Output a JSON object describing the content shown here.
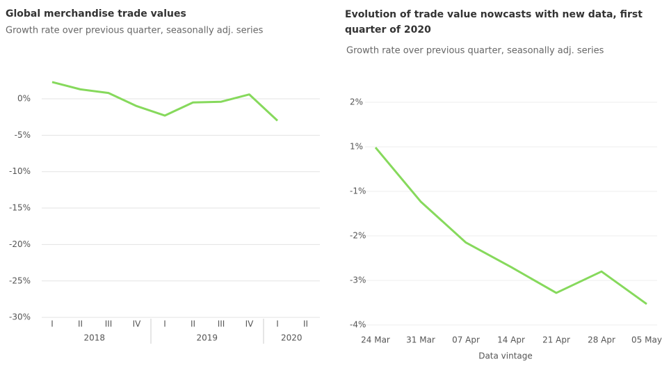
{
  "chart_data": [
    {
      "type": "line",
      "title": "Global merchandise trade values",
      "subtitle": "Growth rate over previous quarter, seasonally adj. series",
      "groups": [
        {
          "label": "2018",
          "categories": [
            "I",
            "II",
            "III",
            "IV"
          ]
        },
        {
          "label": "2019",
          "categories": [
            "I",
            "II",
            "III",
            "IV"
          ]
        },
        {
          "label": "2020",
          "categories": [
            "I",
            "II"
          ]
        }
      ],
      "series": [
        {
          "color": "#86d95c",
          "values": [
            2.3,
            1.3,
            0.8,
            -1.0,
            -2.3,
            -0.5,
            -0.4,
            0.6,
            -3.0,
            null
          ]
        }
      ],
      "ylim": [
        2.8,
        -30.5
      ],
      "yticks": [
        {
          "value": 0,
          "label": "0%"
        },
        {
          "value": -5,
          "label": "-5%"
        },
        {
          "value": -10,
          "label": "-10%"
        },
        {
          "value": -15,
          "label": "-15%"
        },
        {
          "value": -20,
          "label": "-20%"
        },
        {
          "value": -25,
          "label": "-25%"
        },
        {
          "value": -30,
          "label": "-30%"
        }
      ],
      "grid": true
    },
    {
      "type": "line",
      "title": "Evolution of trade value nowcasts with new data, first quarter of 2020",
      "subtitle": "Growth rate over previous quarter, seasonally adj. series",
      "xlabel": "Data vintage",
      "categories": [
        "24 Mar",
        "31 Mar",
        "07 Apr",
        "14 Apr",
        "21 Apr",
        "28 Apr",
        "05 May"
      ],
      "series": [
        {
          "color": "#86d95c",
          "values": [
            0.97,
            -1.23,
            -2.15,
            -2.7,
            -3.28,
            -2.8,
            -3.53
          ]
        }
      ],
      "yticks": [
        {
          "value": 2,
          "label": "2%"
        },
        {
          "value": 1,
          "label": "1%"
        },
        {
          "value": -1,
          "label": "-1%"
        },
        {
          "value": -2,
          "label": "-2%"
        },
        {
          "value": -3,
          "label": "-3%"
        },
        {
          "value": -4,
          "label": "-4%"
        }
      ],
      "grid": true
    }
  ]
}
